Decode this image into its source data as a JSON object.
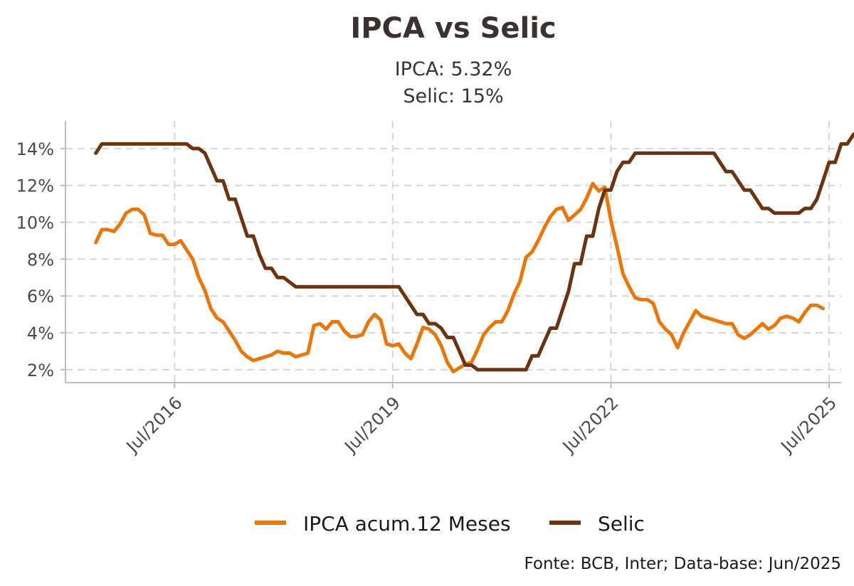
{
  "chart_data": {
    "type": "line",
    "title": "IPCA vs Selic",
    "subtitle_lines": [
      "IPCA: 5.32%",
      "Selic: 15%"
    ],
    "caption": "Fonte: BCB, Inter; Data-base: Jun/2025",
    "xlabel": "",
    "ylabel": "",
    "x_start": "2015-06",
    "x_end": "2025-06",
    "xlim": [
      "2015-01",
      "2025-09"
    ],
    "x_ticks": [
      "2016-07",
      "2019-07",
      "2022-07",
      "2025-07"
    ],
    "x_tick_labels": [
      "Jul/2016",
      "Jul/2019",
      "Jul/2022",
      "Jul/2025"
    ],
    "ylim": [
      1.3,
      15.5
    ],
    "y_ticks": [
      2,
      4,
      6,
      8,
      10,
      12,
      14
    ],
    "y_tick_labels": [
      "2%",
      "4%",
      "6%",
      "8%",
      "10%",
      "12%",
      "14%"
    ],
    "grid": true,
    "legend_position": "bottom",
    "series": [
      {
        "name": "IPCA acum.12 Meses",
        "color": "#E8780C",
        "values": [
          8.9,
          9.6,
          9.6,
          9.5,
          9.9,
          10.5,
          10.7,
          10.7,
          10.4,
          9.4,
          9.3,
          9.3,
          8.8,
          8.8,
          9.0,
          8.5,
          8.0,
          7.0,
          6.3,
          5.3,
          4.8,
          4.6,
          4.1,
          3.6,
          3.0,
          2.7,
          2.5,
          2.6,
          2.7,
          2.8,
          3.0,
          2.9,
          2.9,
          2.7,
          2.8,
          2.9,
          4.4,
          4.5,
          4.2,
          4.6,
          4.6,
          4.1,
          3.8,
          3.8,
          3.9,
          4.6,
          5.0,
          4.7,
          3.4,
          3.3,
          3.4,
          2.9,
          2.6,
          3.4,
          4.3,
          4.2,
          3.9,
          3.3,
          2.4,
          1.9,
          2.1,
          2.3,
          2.4,
          3.1,
          3.9,
          4.3,
          4.6,
          4.6,
          5.2,
          6.1,
          6.8,
          8.1,
          8.4,
          9.0,
          9.7,
          10.3,
          10.7,
          10.8,
          10.1,
          10.4,
          10.7,
          11.3,
          12.1,
          11.7,
          11.9,
          10.1,
          8.7,
          7.2,
          6.5,
          5.9,
          5.8,
          5.8,
          5.6,
          4.6,
          4.2,
          3.9,
          3.2,
          4.0,
          4.6,
          5.2,
          4.9,
          4.8,
          4.7,
          4.6,
          4.5,
          4.5,
          3.9,
          3.7,
          3.9,
          4.2,
          4.5,
          4.2,
          4.4,
          4.8,
          4.9,
          4.8,
          4.6,
          5.1,
          5.5,
          5.5,
          5.32
        ]
      },
      {
        "name": "Selic",
        "color": "#6B3410",
        "values": [
          13.75,
          14.25,
          14.25,
          14.25,
          14.25,
          14.25,
          14.25,
          14.25,
          14.25,
          14.25,
          14.25,
          14.25,
          14.25,
          14.25,
          14.25,
          14.25,
          14.0,
          14.0,
          13.75,
          13.0,
          12.25,
          12.25,
          11.25,
          11.25,
          10.25,
          9.25,
          9.25,
          8.25,
          7.5,
          7.5,
          7.0,
          7.0,
          6.75,
          6.5,
          6.5,
          6.5,
          6.5,
          6.5,
          6.5,
          6.5,
          6.5,
          6.5,
          6.5,
          6.5,
          6.5,
          6.5,
          6.5,
          6.5,
          6.5,
          6.5,
          6.5,
          6.0,
          5.5,
          5.0,
          5.0,
          4.5,
          4.5,
          4.25,
          3.75,
          3.75,
          3.0,
          2.25,
          2.25,
          2.0,
          2.0,
          2.0,
          2.0,
          2.0,
          2.0,
          2.0,
          2.0,
          2.0,
          2.75,
          2.75,
          3.5,
          4.25,
          4.25,
          5.25,
          6.25,
          7.75,
          7.75,
          9.25,
          9.25,
          10.75,
          11.75,
          11.75,
          12.75,
          13.25,
          13.25,
          13.75,
          13.75,
          13.75,
          13.75,
          13.75,
          13.75,
          13.75,
          13.75,
          13.75,
          13.75,
          13.75,
          13.75,
          13.75,
          13.75,
          13.25,
          12.75,
          12.75,
          12.25,
          11.75,
          11.75,
          11.25,
          10.75,
          10.75,
          10.5,
          10.5,
          10.5,
          10.5,
          10.5,
          10.75,
          10.75,
          11.25,
          12.25,
          13.25,
          13.25,
          14.25,
          14.25,
          14.75,
          15.0
        ]
      }
    ]
  }
}
